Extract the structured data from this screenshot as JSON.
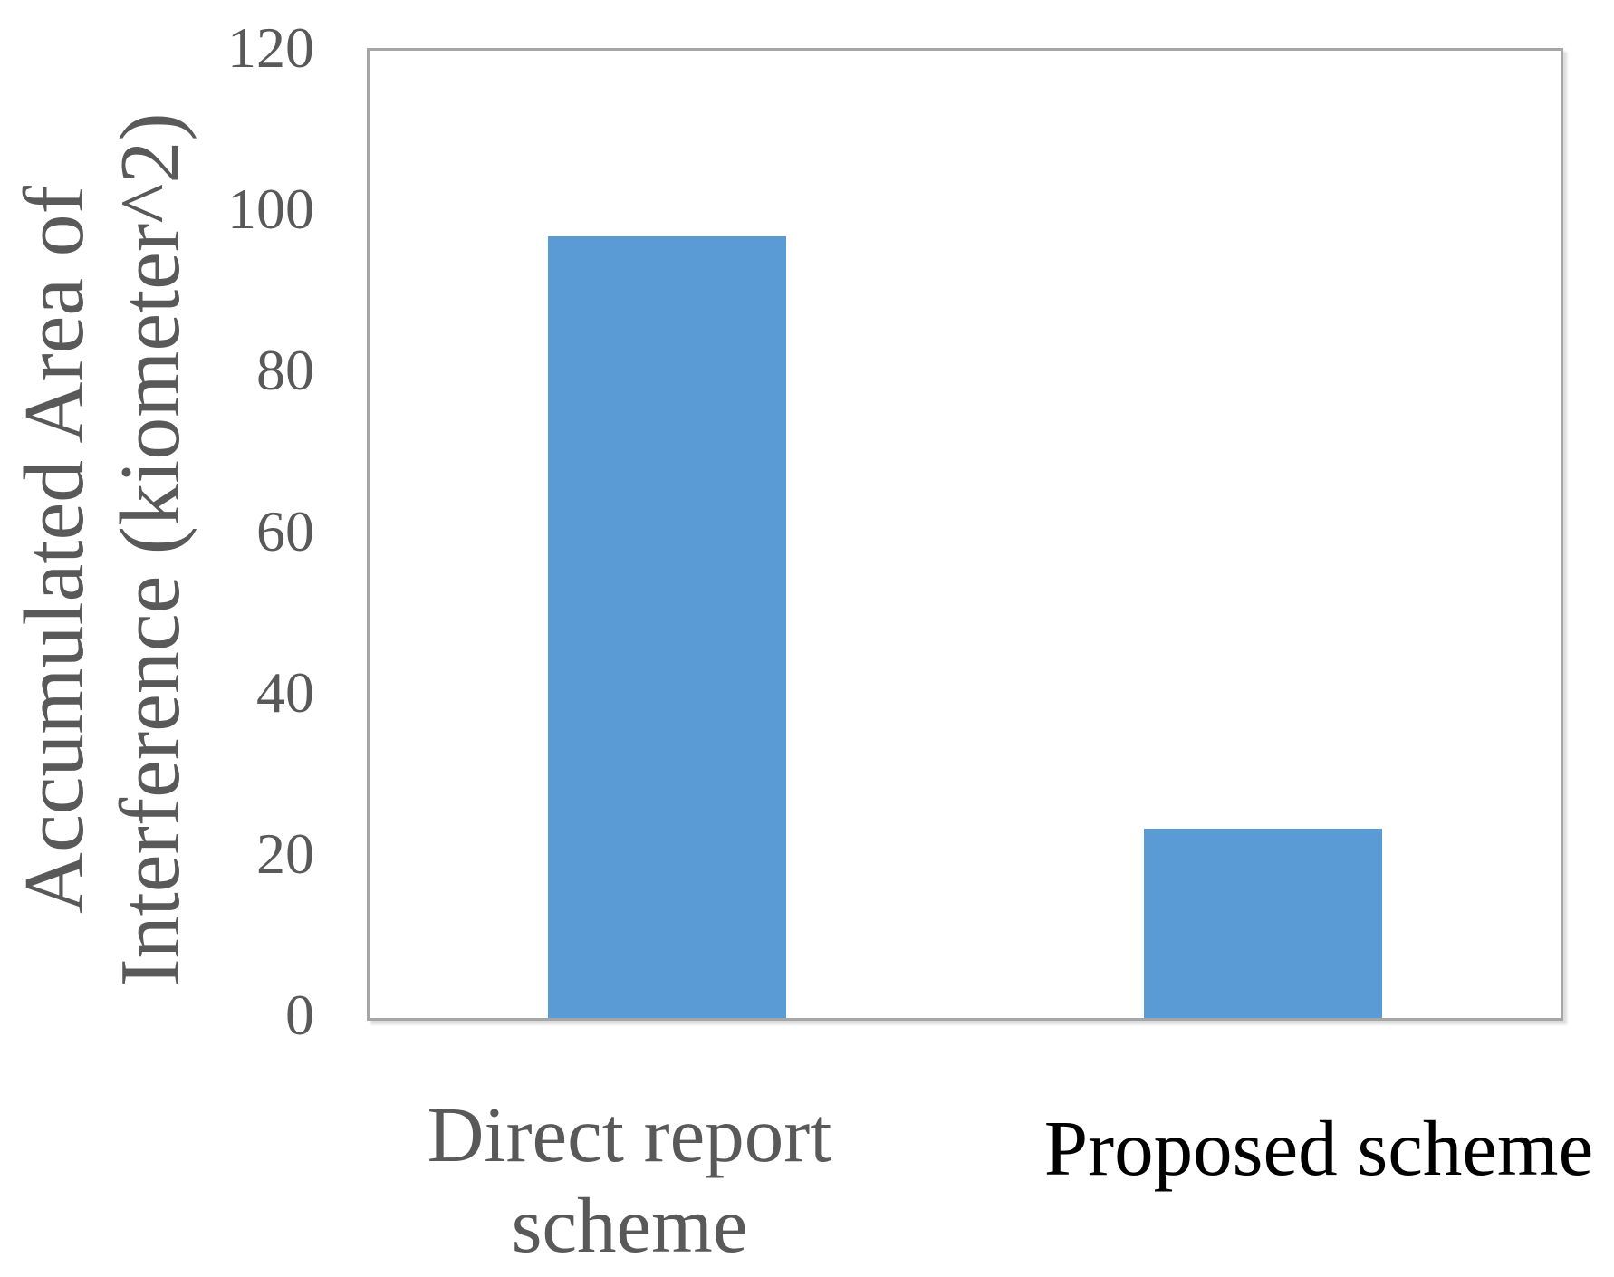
{
  "chart_data": {
    "type": "bar",
    "title": "",
    "xlabel": "",
    "ylabel": "Accumulated Area of Interference (kiometer^2)",
    "ylabel_lines": [
      "Accumulated Area of",
      "Interference (kiometer^2)"
    ],
    "categories": [
      "Direct report scheme",
      "Proposed scheme"
    ],
    "category_lines": [
      [
        "Direct report",
        "scheme"
      ],
      [
        "Proposed scheme"
      ]
    ],
    "values": [
      97,
      23.5
    ],
    "ylim": [
      0,
      120
    ],
    "yticks": [
      120,
      100,
      80,
      60,
      40,
      20,
      0
    ],
    "grid": false,
    "legend_position": "none",
    "bar_color": "#5B9BD5",
    "plot_border_color": "#A6A6A6",
    "tick_label_color": "#595959",
    "ylabel_color": "#595959",
    "category_label_colors": [
      "#595959",
      "#000000"
    ]
  }
}
